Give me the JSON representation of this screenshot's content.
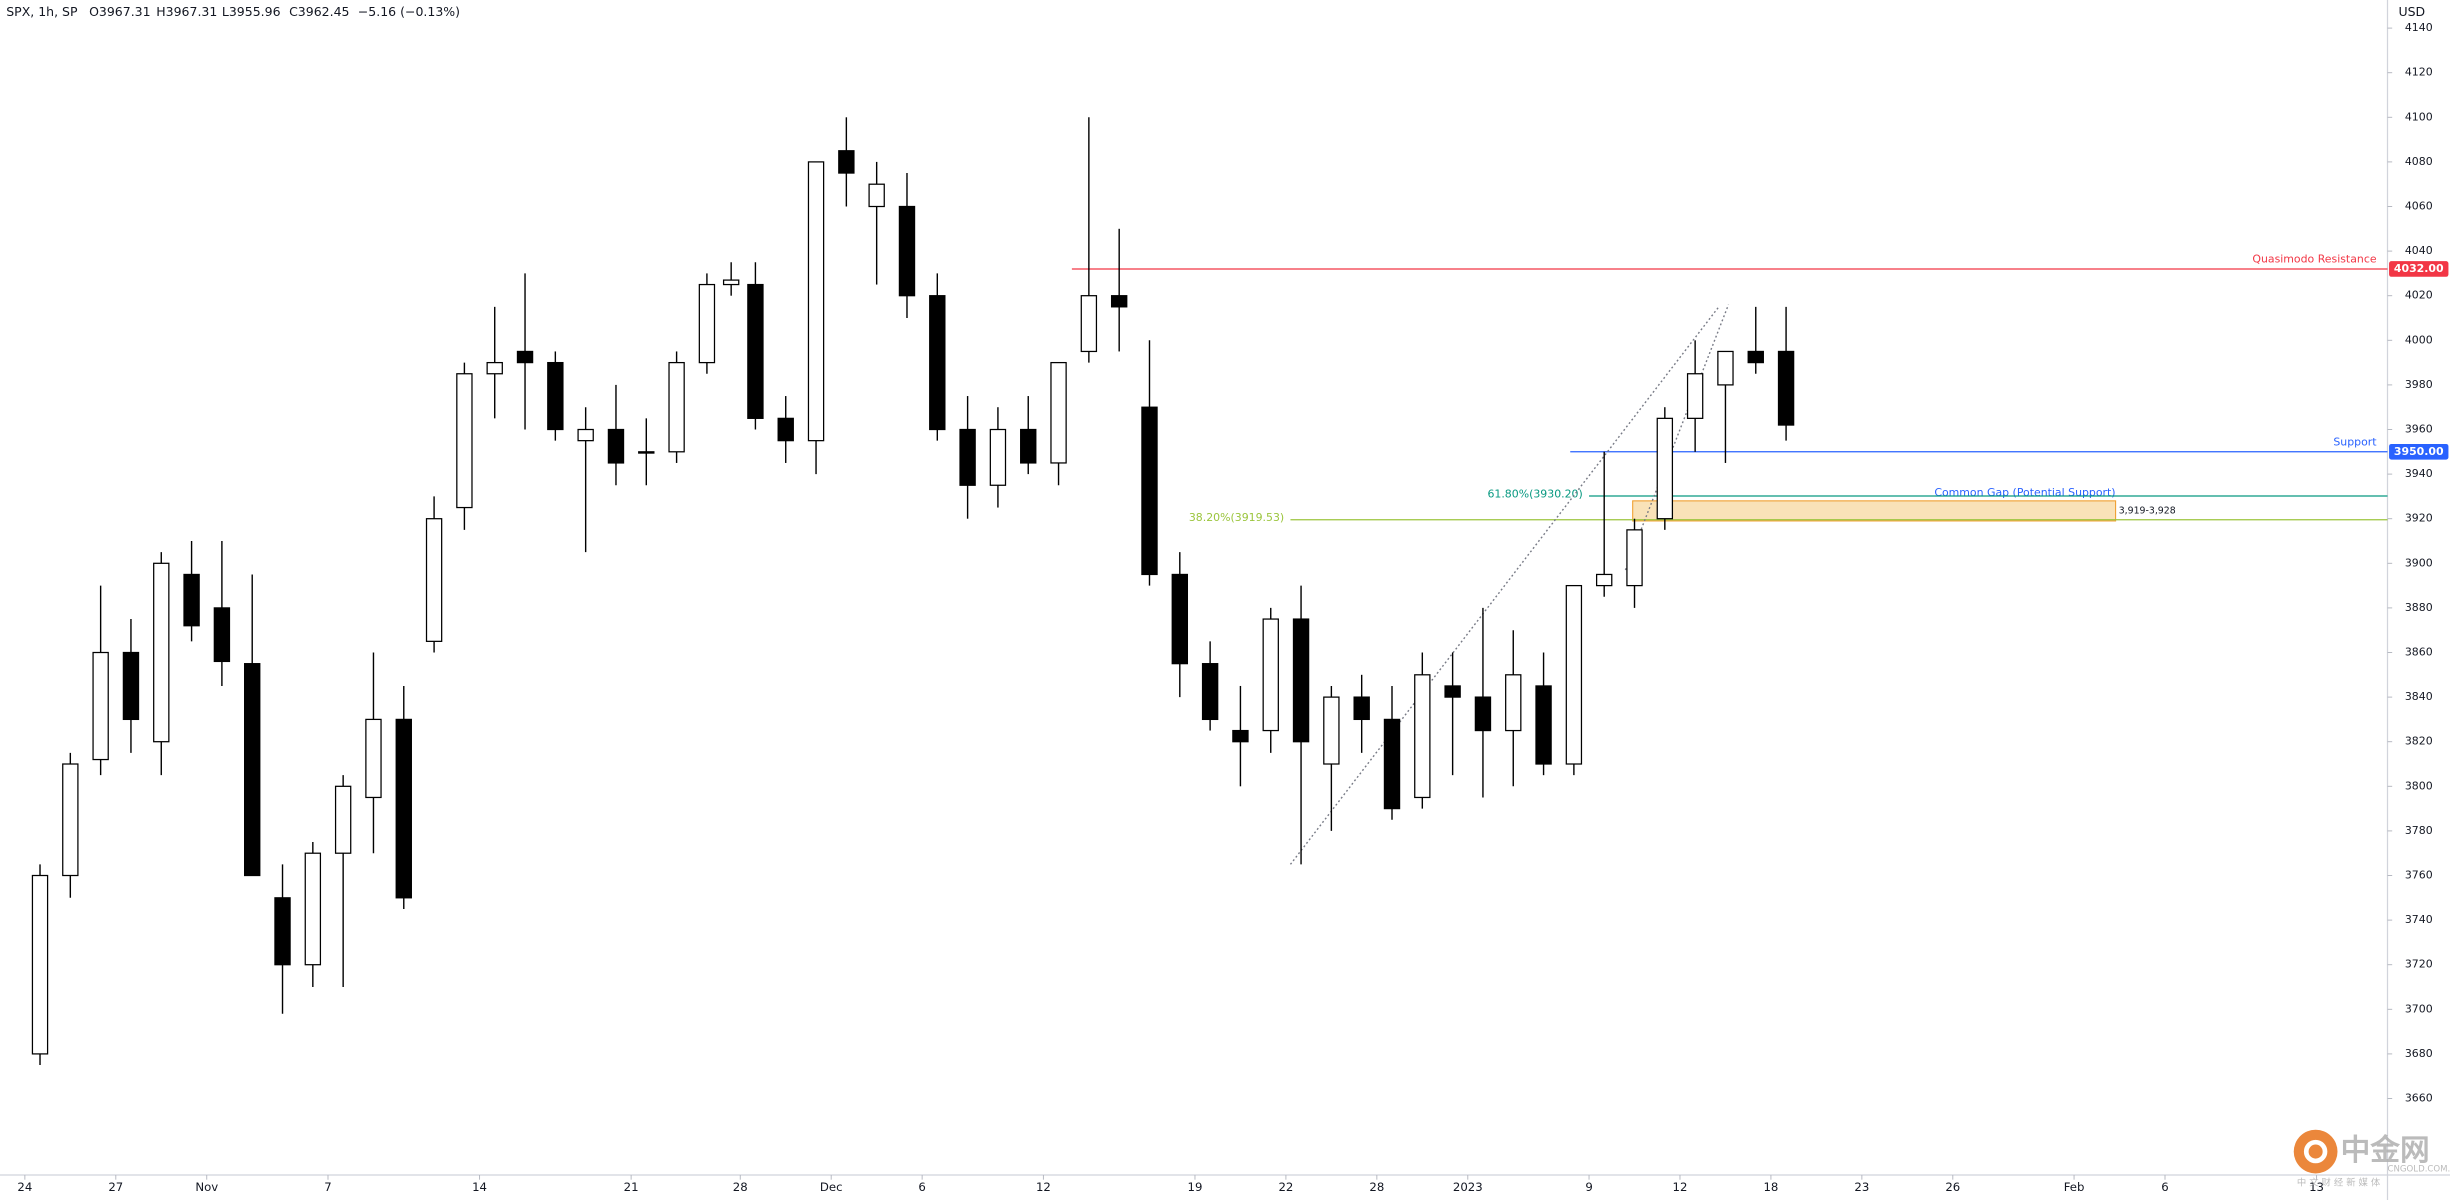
{
  "header": {
    "symbol": "SPX, 1h, SP",
    "open": "O3967.31",
    "high": "H3967.31",
    "low": "L3955.96",
    "close": "C3962.45",
    "change": "−5.16 (−0.13%)"
  },
  "chart_data": {
    "type": "candlestick",
    "y_axis_label": "USD",
    "xlim": [
      -0.82,
      77.94
    ],
    "ylim": [
      3625.7,
      4152.6
    ],
    "xticks": [
      {
        "value": 0,
        "label": "24"
      },
      {
        "value": 3,
        "label": "27"
      },
      {
        "value": 6,
        "label": "Nov"
      },
      {
        "value": 10,
        "label": "7"
      },
      {
        "value": 15,
        "label": "14"
      },
      {
        "value": 20,
        "label": "21"
      },
      {
        "value": 23.6,
        "label": "28"
      },
      {
        "value": 26.6,
        "label": "Dec"
      },
      {
        "value": 29.6,
        "label": "6"
      },
      {
        "value": 33.6,
        "label": "12"
      },
      {
        "value": 38.6,
        "label": "19"
      },
      {
        "value": 41.6,
        "label": "22"
      },
      {
        "value": 44.6,
        "label": "28"
      },
      {
        "value": 47.6,
        "label": "2023"
      },
      {
        "value": 51.6,
        "label": "9"
      },
      {
        "value": 54.6,
        "label": "12"
      },
      {
        "value": 57.6,
        "label": "18"
      },
      {
        "value": 60.6,
        "label": "23"
      },
      {
        "value": 63.6,
        "label": "26"
      },
      {
        "value": 67.6,
        "label": "Feb"
      },
      {
        "value": 70.6,
        "label": "6"
      },
      {
        "value": 75.6,
        "label": "13"
      }
    ],
    "yticks": [
      3660,
      3680,
      3700,
      3720,
      3740,
      3760,
      3780,
      3800,
      3820,
      3840,
      3860,
      3880,
      3900,
      3920,
      3940,
      3960,
      3980,
      4000,
      4020,
      4040,
      4060,
      4080,
      4100,
      4120,
      4140
    ],
    "x": [
      0.5,
      1.5,
      2.5,
      3.5,
      4.5,
      5.5,
      6.5,
      7.5,
      8.5,
      9.5,
      10.5,
      11.5,
      12.5,
      13.5,
      14.5,
      15.5,
      16.5,
      17.5,
      18.5,
      19.5,
      20.5,
      21.5,
      22.5,
      23.3,
      24.1,
      25.1,
      26.1,
      27.1,
      28.1,
      29.1,
      30.1,
      31.1,
      32.1,
      33.1,
      34.1,
      35.1,
      36.1,
      37.1,
      38.1,
      39.1,
      40.1,
      41.1,
      42.1,
      43.1,
      44.1,
      45.1,
      46.1,
      47.1,
      48.1,
      49.1,
      50.1,
      51.1,
      52.1,
      53.1,
      54.1,
      55.1,
      56.1,
      57.1,
      58.1
    ],
    "open": [
      3680,
      3760,
      3812,
      3860,
      3820,
      3895,
      3880,
      3855,
      3750,
      3720,
      3770,
      3795,
      3830,
      3865,
      3925,
      3985,
      3995,
      3990,
      3955,
      3960,
      3950,
      3950,
      3990,
      4025,
      4025,
      3965,
      3955,
      4085,
      4060,
      4060,
      4020,
      3960,
      3935,
      3960,
      3945,
      3995,
      4020,
      3970,
      3895,
      3855,
      3825,
      3825,
      3875,
      3810,
      3840,
      3830,
      3795,
      3845,
      3840,
      3825,
      3845,
      3810,
      3890,
      3890,
      3920,
      3965,
      3980,
      3995,
      3995
    ],
    "high": [
      3765,
      3815,
      3890,
      3875,
      3905,
      3910,
      3910,
      3895,
      3765,
      3775,
      3805,
      3860,
      3845,
      3930,
      3990,
      4015,
      4030,
      3995,
      3970,
      3980,
      3965,
      3995,
      4030,
      4035,
      4035,
      3975,
      4080,
      4100,
      4080,
      4075,
      4030,
      3975,
      3970,
      3975,
      3990,
      4100,
      4050,
      4000,
      3905,
      3865,
      3845,
      3880,
      3890,
      3845,
      3850,
      3845,
      3860,
      3860,
      3880,
      3870,
      3860,
      3890,
      3950,
      3920,
      3970,
      4000,
      3995,
      4015,
      4015
    ],
    "low": [
      3675,
      3750,
      3805,
      3815,
      3805,
      3865,
      3845,
      3760,
      3698,
      3710,
      3710,
      3770,
      3745,
      3860,
      3915,
      3965,
      3960,
      3955,
      3905,
      3935,
      3935,
      3945,
      3985,
      4020,
      3960,
      3945,
      3940,
      4060,
      4025,
      4010,
      3955,
      3920,
      3925,
      3940,
      3935,
      3990,
      3995,
      3890,
      3840,
      3825,
      3800,
      3815,
      3765,
      3780,
      3815,
      3785,
      3790,
      3805,
      3795,
      3800,
      3805,
      3805,
      3885,
      3880,
      3915,
      3950,
      3945,
      3985,
      3955
    ],
    "close": [
      3760,
      3810,
      3860,
      3830,
      3900,
      3872,
      3856,
      3760,
      3720,
      3770,
      3800,
      3830,
      3750,
      3920,
      3985,
      3990,
      3990,
      3960,
      3960,
      3945,
      3950,
      3990,
      4025,
      4027,
      3965,
      3955,
      4080,
      4075,
      4070,
      4020,
      3960,
      3935,
      3960,
      3945,
      3990,
      4020,
      4015,
      3895,
      3855,
      3830,
      3820,
      3875,
      3820,
      3840,
      3830,
      3790,
      3850,
      3840,
      3825,
      3850,
      3810,
      3890,
      3895,
      3915,
      3965,
      3985,
      3995,
      3990,
      3962
    ],
    "up_color": "#ffffff",
    "down_color": "#000000",
    "wick_color": "#000000",
    "levels": [
      {
        "name": "Quasimodo Resistance",
        "value": 4032,
        "tag": "4032.00",
        "x_start": 34.54,
        "color": "#f23645"
      },
      {
        "name": "Support",
        "value": 3950,
        "tag": "3950.00",
        "x_start": 50.98,
        "color": "#2962ff"
      },
      {
        "name": "61.80%(3930.20)",
        "value": 3930.2,
        "x_start": 51.6,
        "color": "#089981"
      },
      {
        "name": "38.20%(3919.53)",
        "value": 3919.53,
        "x_start": 41.75,
        "color": "#9bc53d"
      }
    ],
    "gap": {
      "name": "Common Gap (Potential Support)",
      "label": "3,919-3,928",
      "low": 3919,
      "high": 3928,
      "x_start": 53.04,
      "x_end": 68.97,
      "color": "#f9e2b8",
      "border": "#f0a030",
      "name_color": "#2962ff"
    },
    "trendlines": [
      {
        "x": [
          41.75,
          55.88
        ],
        "y": [
          3765,
          4015
        ]
      },
      {
        "x": [
          52.8,
          56.2
        ],
        "y": [
          3897,
          4016
        ]
      }
    ],
    "trendline_color": "#787b86"
  },
  "watermark": {
    "logo": "中金网",
    "site": "CNGOLD.COM.CN",
    "slogan": "中 文 财 经 新 媒 体"
  }
}
